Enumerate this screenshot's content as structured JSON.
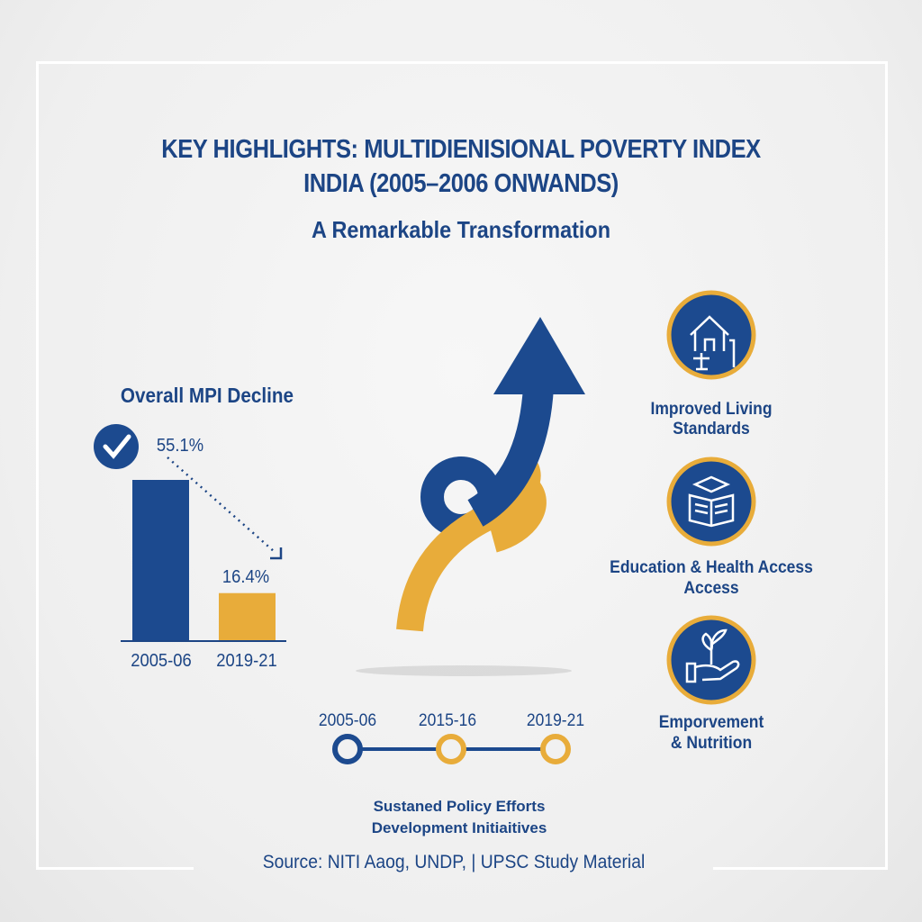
{
  "header": {
    "title_line1": "KEY HIGHLIGHTS: MULTIDIENISIONAL POVERTY INDEX",
    "title_line2": "INDIA (2005–2006 ONWANDS)",
    "subtitle": "A Remarkable Transformation"
  },
  "colors": {
    "primary": "#1c4a8f",
    "accent": "#e8ac3a",
    "background": "#f0f0f0"
  },
  "chart_data": {
    "type": "bar",
    "title": "Overall MPI Decline",
    "categories": [
      "2005-06",
      "2019-21"
    ],
    "values": [
      55.1,
      16.4
    ],
    "data_labels": [
      "55.1%",
      "16.4%"
    ],
    "bar_colors": [
      "#1c4a8f",
      "#e8ac3a"
    ],
    "ylim": [
      0,
      60
    ],
    "grid": false,
    "annotations": [
      "check-circle-icon",
      "dotted decline arrow"
    ]
  },
  "timeline": {
    "points": [
      {
        "label": "2005-06",
        "color": "#1c4a8f"
      },
      {
        "label": "2015-16",
        "color": "#e8ac3a"
      },
      {
        "label": "2019-21",
        "color": "#e8ac3a"
      }
    ],
    "caption_line1": "Sustaned Policy Efforts",
    "caption_line2": "Development Initiaitives"
  },
  "highlights": [
    {
      "icon": "house-water-tap-icon",
      "line1": "Improved Living",
      "line2": "Standards"
    },
    {
      "icon": "book-graduation-cap-icon",
      "line1": "Education & Health Access",
      "line2": "Access"
    },
    {
      "icon": "hand-plant-icon",
      "line1": "Emporvement",
      "line2": "& Nutrition"
    }
  ],
  "footer": {
    "source": "Source: NITI Aaog, UNDP, | UPSC Study Material"
  }
}
